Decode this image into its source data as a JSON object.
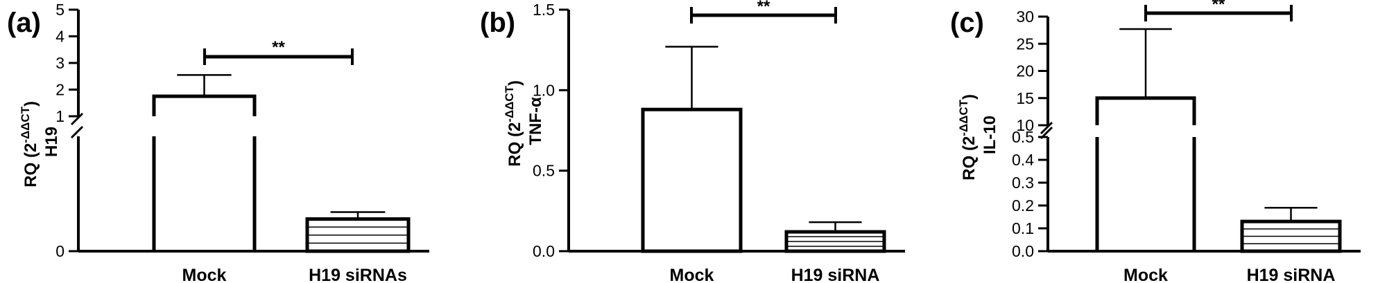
{
  "chart_data": [
    {
      "panel": "(a)",
      "type": "bar",
      "categories": [
        "Mock",
        "H19 siRNAs"
      ],
      "values": [
        1.75,
        0.14
      ],
      "error_upper": [
        2.55,
        0.17
      ],
      "patterns": [
        "none",
        "horizontal-lines"
      ],
      "ylabel_line1": "RQ (2",
      "ylabel_sup": "-ΔΔCT",
      "ylabel_close": ")",
      "ylabel_line2": "H19",
      "axis_break": true,
      "lower_segment": {
        "ylim": [
          0,
          0.5
        ],
        "ticks": [
          "0"
        ]
      },
      "upper_segment": {
        "ylim": [
          1,
          5
        ],
        "ticks": [
          "1",
          "2",
          "3",
          "4",
          "5"
        ]
      },
      "significance": "**"
    },
    {
      "panel": "(b)",
      "type": "bar",
      "categories": [
        "Mock",
        "H19 siRNA"
      ],
      "values": [
        0.88,
        0.12
      ],
      "error_upper": [
        1.27,
        0.18
      ],
      "patterns": [
        "none",
        "horizontal-lines"
      ],
      "ylabel_line1": "RQ (2",
      "ylabel_sup": "-ΔΔCT",
      "ylabel_close": ")",
      "ylabel_line2": "TNF-α",
      "axis_break": false,
      "ylim": [
        0,
        1.5
      ],
      "ticks": [
        "0.0",
        "0.5",
        "1.0",
        "1.5"
      ],
      "significance": "**"
    },
    {
      "panel": "(c)",
      "type": "bar",
      "categories": [
        "Mock",
        "H19 siRNA"
      ],
      "values": [
        15,
        0.13
      ],
      "error_upper": [
        27.7,
        0.19
      ],
      "patterns": [
        "none",
        "horizontal-lines"
      ],
      "ylabel_line1": "RQ (2",
      "ylabel_sup": "-ΔΔCT",
      "ylabel_close": ")",
      "ylabel_line2": "IL-10",
      "axis_break": true,
      "lower_segment": {
        "ylim": [
          0,
          0.5
        ],
        "ticks": [
          "0.0",
          "0.1",
          "0.2",
          "0.3",
          "0.4",
          "0.5"
        ]
      },
      "upper_segment": {
        "ylim": [
          10,
          30
        ],
        "ticks": [
          "10",
          "15",
          "20",
          "25",
          "30"
        ]
      },
      "significance": "**"
    }
  ]
}
